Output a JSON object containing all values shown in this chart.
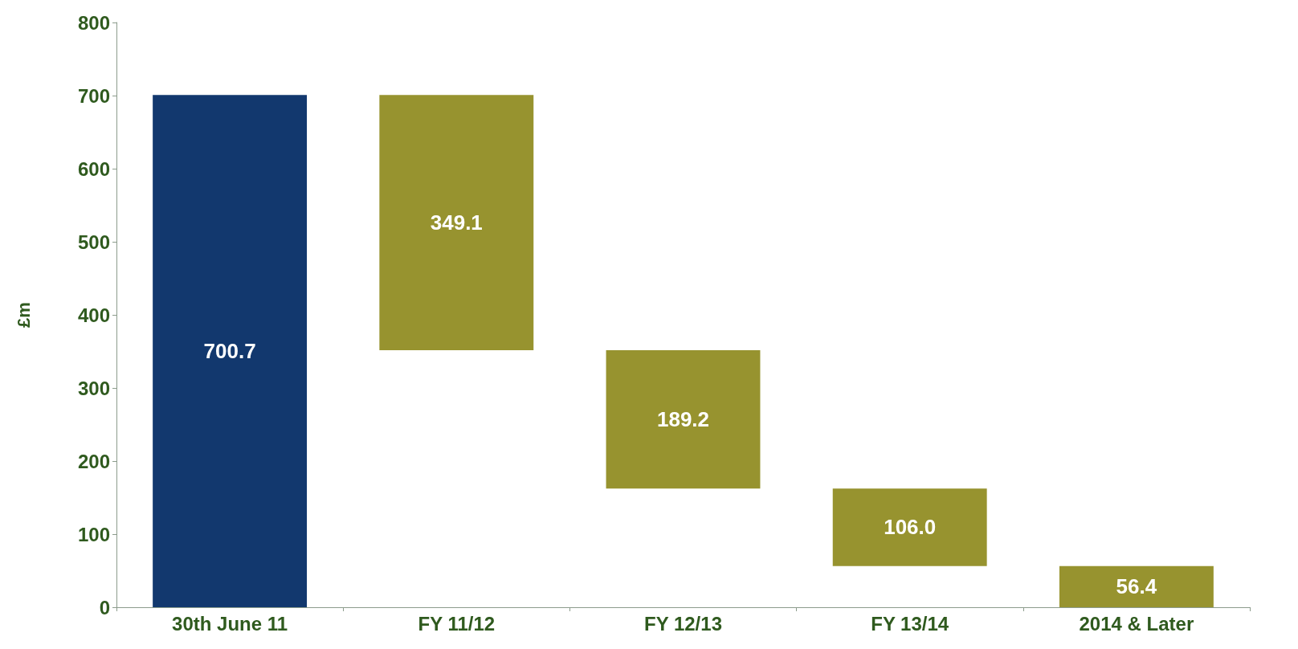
{
  "chart_data": {
    "type": "bar",
    "ylabel": "£m",
    "categories": [
      "30th June 11",
      "FY 11/12",
      "FY 12/13",
      "FY 13/14",
      "2014 & Later"
    ],
    "values": [
      700.7,
      349.1,
      189.2,
      106.0,
      56.4
    ],
    "base": [
      0,
      351.6,
      162.4,
      56.4,
      0
    ],
    "colors": [
      "#12386e",
      "#97932f",
      "#97932f",
      "#97932f",
      "#97932f"
    ],
    "value_labels": [
      "700.7",
      "349.1",
      "189.2",
      "106.0",
      "56.4"
    ],
    "ylim": [
      0,
      800
    ],
    "yticks": [
      0,
      100,
      200,
      300,
      400,
      500,
      600,
      700,
      800
    ]
  }
}
